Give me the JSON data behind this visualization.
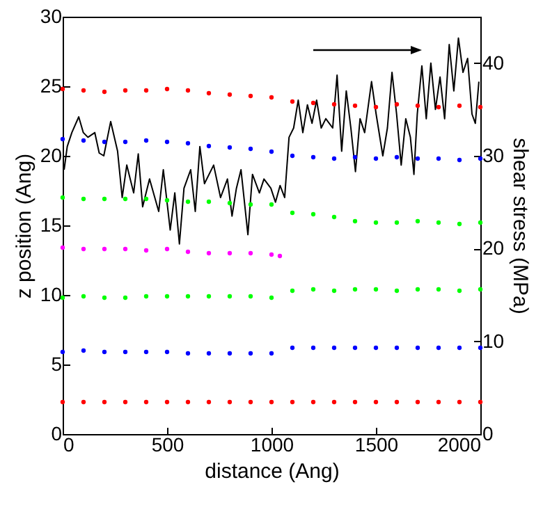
{
  "chart_data": {
    "type": "scatter",
    "xlabel": "distance (Ang)",
    "ylabel": "z position (Ang)",
    "y2label": "shear stress (MPa)",
    "xlim": [
      0,
      2000
    ],
    "xticks": [
      0,
      500,
      1000,
      1500,
      2000
    ],
    "ylim": [
      0,
      30
    ],
    "yticks": [
      0,
      5,
      10,
      15,
      20,
      25,
      30
    ],
    "y2lim": [
      0,
      45
    ],
    "y2ticks": [
      0,
      10,
      20,
      30,
      40
    ],
    "marker": "circle",
    "grid": false,
    "x": [
      0,
      100,
      200,
      300,
      400,
      500,
      600,
      700,
      800,
      900,
      1000,
      1100,
      1200,
      1300,
      1400,
      1500,
      1600,
      1700,
      1800,
      1900,
      2000
    ],
    "series": [
      {
        "color": "#ff0000",
        "values": [
          24.8,
          24.7,
          24.6,
          24.7,
          24.7,
          24.8,
          24.7,
          24.5,
          24.4,
          24.3,
          24.2,
          23.9,
          23.8,
          23.7,
          23.6,
          23.5,
          23.7,
          23.6,
          23.5,
          23.6,
          23.5
        ]
      },
      {
        "color": "#0000ff",
        "values": [
          21.2,
          21.1,
          21.0,
          21.0,
          21.1,
          21.0,
          20.9,
          20.7,
          20.6,
          20.5,
          20.3,
          20.0,
          19.9,
          19.8,
          19.9,
          19.8,
          19.9,
          19.8,
          19.8,
          19.7,
          19.8
        ]
      },
      {
        "color": "#00ff00",
        "values": [
          17.0,
          16.9,
          16.9,
          16.9,
          16.9,
          16.8,
          16.7,
          16.7,
          16.6,
          16.5,
          16.5,
          15.9,
          15.8,
          15.6,
          15.3,
          15.2,
          15.2,
          15.3,
          15.2,
          15.1,
          15.2
        ]
      },
      {
        "color": "#ff00ff",
        "x": [
          0,
          100,
          200,
          300,
          400,
          500,
          600,
          700,
          800,
          900,
          1000,
          1040
        ],
        "values": [
          13.4,
          13.3,
          13.3,
          13.3,
          13.2,
          13.3,
          13.1,
          13.0,
          13.0,
          13.0,
          12.9,
          12.8
        ]
      },
      {
        "color": "#00ff00",
        "values": [
          9.8,
          9.9,
          9.8,
          9.8,
          9.9,
          9.9,
          9.9,
          9.9,
          9.9,
          9.9,
          9.8,
          10.3,
          10.4,
          10.3,
          10.4,
          10.4,
          10.3,
          10.4,
          10.4,
          10.3,
          10.4
        ]
      },
      {
        "color": "#0000ff",
        "values": [
          5.9,
          6.0,
          5.9,
          5.9,
          5.9,
          5.9,
          5.8,
          5.8,
          5.8,
          5.8,
          5.8,
          6.2,
          6.2,
          6.2,
          6.2,
          6.2,
          6.2,
          6.2,
          6.2,
          6.2,
          6.2
        ]
      },
      {
        "color": "#ff0000",
        "values": [
          2.3,
          2.3,
          2.3,
          2.3,
          2.3,
          2.3,
          2.3,
          2.3,
          2.3,
          2.3,
          2.3,
          2.3,
          2.3,
          2.3,
          2.3,
          2.3,
          2.3,
          2.3,
          2.3,
          2.3,
          2.3
        ]
      },
      {
        "type": "line",
        "axis": "y2",
        "color": "#000000",
        "line_style": "solid",
        "marker": "none",
        "x": [
          7,
          22,
          44,
          77,
          99,
          121,
          154,
          175,
          197,
          230,
          263,
          285,
          307,
          340,
          362,
          383,
          416,
          460,
          482,
          515,
          537,
          559,
          581,
          613,
          635,
          657,
          679,
          723,
          756,
          789,
          811,
          832,
          854,
          887,
          909,
          942,
          964,
          997,
          1019,
          1041,
          1063,
          1084,
          1106,
          1128,
          1150,
          1172,
          1194,
          1216,
          1238,
          1260,
          1293,
          1314,
          1336,
          1358,
          1380,
          1402,
          1424,
          1446,
          1479,
          1501,
          1533,
          1555,
          1577,
          1599,
          1621,
          1643,
          1665,
          1682,
          1698,
          1720,
          1741,
          1763,
          1785,
          1807,
          1829,
          1851,
          1873,
          1895,
          1917,
          1939,
          1960,
          1976,
          1993
        ],
        "values": [
          28.5,
          31.0,
          32.5,
          34.2,
          32.5,
          32.0,
          32.5,
          30.3,
          30.0,
          33.7,
          30.5,
          25.5,
          29.0,
          26.0,
          30.2,
          24.5,
          27.5,
          24.0,
          28.5,
          22.0,
          26.0,
          20.5,
          26.5,
          28.5,
          24.0,
          31.0,
          27.0,
          29.0,
          25.5,
          27.5,
          23.5,
          26.5,
          28.5,
          21.5,
          28.0,
          26.0,
          27.5,
          26.5,
          25.0,
          26.8,
          25.5,
          32.0,
          33.0,
          36.0,
          32.5,
          35.5,
          33.5,
          36.0,
          33.0,
          34.0,
          33.0,
          38.7,
          30.5,
          37.0,
          33.0,
          28.3,
          34.0,
          32.5,
          38.0,
          34.5,
          30.0,
          33.0,
          39.0,
          34.5,
          29.0,
          34.0,
          32.0,
          28.0,
          34.5,
          39.7,
          34.0,
          40.0,
          35.0,
          38.5,
          34.0,
          42.0,
          37.0,
          42.7,
          39.0,
          40.5,
          34.5,
          33.5,
          38.0
        ]
      }
    ]
  }
}
